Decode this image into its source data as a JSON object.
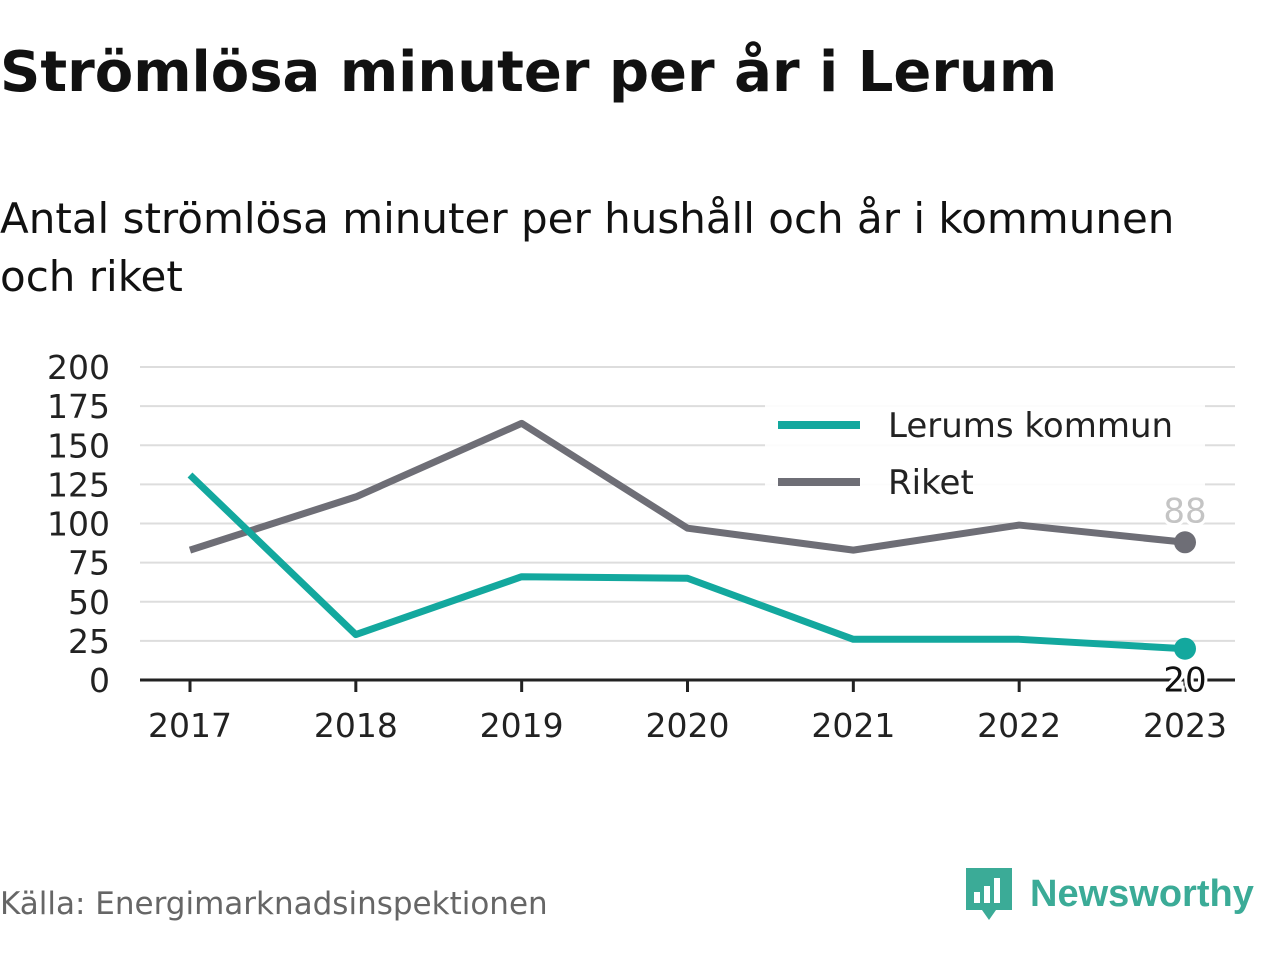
{
  "title": "Strömlösa minuter per år i Lerum",
  "subtitle": "Antal strömlösa minuter per hushåll och år i kommunen och riket",
  "source": "Källa: Energimarknadsinspektionen",
  "brand": {
    "name": "Newsworthy",
    "icon": "newsworthy-logo-icon",
    "color": "#3bab97"
  },
  "chart_data": {
    "type": "line",
    "categories": [
      "2017",
      "2018",
      "2019",
      "2020",
      "2021",
      "2022",
      "2023"
    ],
    "ylim": [
      0,
      200
    ],
    "yticks": [
      0,
      25,
      50,
      75,
      100,
      125,
      150,
      175,
      200
    ],
    "grid": true,
    "legend_position": "top-right",
    "series": [
      {
        "name": "Lerums kommun",
        "color": "#13a89e",
        "values": [
          131,
          29,
          66,
          65,
          26,
          26,
          20
        ],
        "end_label": "20"
      },
      {
        "name": "Riket",
        "color": "#6e6e76",
        "values": [
          83,
          117,
          164,
          97,
          83,
          99,
          88
        ],
        "end_label": "88"
      }
    ]
  }
}
